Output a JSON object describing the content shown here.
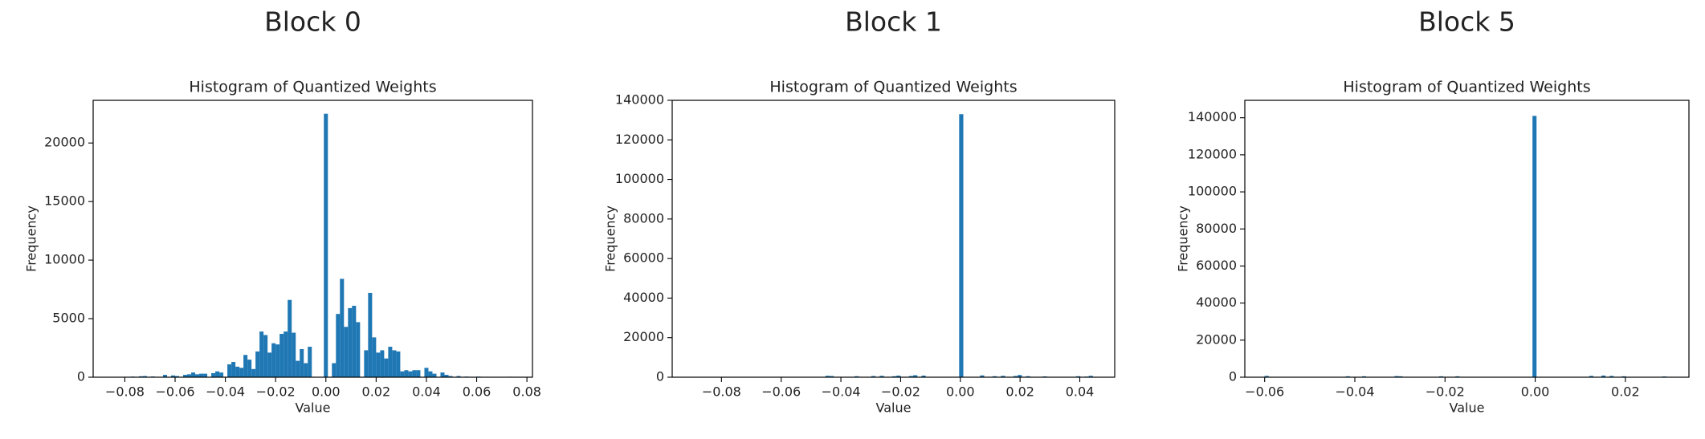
{
  "chart_data": [
    {
      "type": "histogram",
      "title": "Block 0",
      "subtitle": "Histogram of Quantized Weights",
      "xlabel": "Value",
      "ylabel": "Frequency",
      "color": "#1f77b4",
      "bins": [
        -0.0856,
        -0.084,
        -0.0824,
        -0.0808,
        -0.0792,
        -0.0776,
        -0.076,
        -0.0744,
        -0.0728,
        -0.0712,
        -0.0696,
        -0.068,
        -0.0664,
        -0.0648,
        -0.0632,
        -0.0616,
        -0.06,
        -0.0584,
        -0.0568,
        -0.0552,
        -0.0536,
        -0.052,
        -0.0504,
        -0.0488,
        -0.0472,
        -0.0456,
        -0.044,
        -0.0424,
        -0.0408,
        -0.0392,
        -0.0376,
        -0.036,
        -0.0344,
        -0.0328,
        -0.0312,
        -0.0296,
        -0.028,
        -0.0264,
        -0.0248,
        -0.0232,
        -0.0216,
        -0.02,
        -0.0184,
        -0.0168,
        -0.0152,
        -0.0136,
        -0.012,
        -0.0104,
        -0.0088,
        -0.0072,
        -0.0056,
        -0.004,
        -0.0024,
        -0.0008,
        0.0008,
        0.0024,
        0.004,
        0.0056,
        0.0072,
        0.0088,
        0.0104,
        0.012,
        0.0136,
        0.0152,
        0.0168,
        0.0184,
        0.02,
        0.0216,
        0.0232,
        0.0248,
        0.0264,
        0.028,
        0.0296,
        0.0312,
        0.0328,
        0.0344,
        0.036,
        0.0376,
        0.0392,
        0.0408,
        0.0424,
        0.044,
        0.0456,
        0.0472,
        0.0488,
        0.0504,
        0.052,
        0.0536,
        0.0552,
        0.0568,
        0.0584,
        0.06,
        0.0616,
        0.0632,
        0.0648,
        0.0664,
        0.068,
        0.0696,
        0.0712,
        0.0728,
        0.0744
      ],
      "values": [
        0,
        0,
        0,
        0,
        0,
        50,
        0,
        80,
        100,
        0,
        60,
        0,
        0,
        200,
        0,
        150,
        100,
        0,
        200,
        250,
        400,
        250,
        300,
        300,
        0,
        350,
        500,
        400,
        0,
        1100,
        1300,
        900,
        800,
        1900,
        1500,
        700,
        2200,
        3900,
        3600,
        2100,
        2900,
        2800,
        3700,
        3900,
        6600,
        3800,
        1400,
        2400,
        1200,
        2600,
        0,
        0,
        0,
        22500,
        0,
        1200,
        5400,
        8400,
        4300,
        5900,
        6100,
        4700,
        0,
        2300,
        7200,
        3400,
        2100,
        2300,
        1600,
        2600,
        2300,
        2200,
        500,
        600,
        500,
        600,
        600,
        0,
        800,
        500,
        300,
        0,
        400,
        200,
        100,
        0,
        100,
        0,
        50,
        0,
        0,
        50,
        0,
        0,
        0,
        0,
        0,
        0,
        0,
        40
      ],
      "xlim": [
        -0.0926,
        0.0822
      ],
      "ylim": [
        0,
        23645
      ],
      "xticks": [
        {
          "value": -0.08,
          "label": "−0.08"
        },
        {
          "value": -0.06,
          "label": "−0.06"
        },
        {
          "value": -0.04,
          "label": "−0.04"
        },
        {
          "value": -0.02,
          "label": "−0.02"
        },
        {
          "value": 0,
          "label": "0.00"
        },
        {
          "value": 0.02,
          "label": "0.02"
        },
        {
          "value": 0.04,
          "label": "0.04"
        },
        {
          "value": 0.06,
          "label": "0.06"
        },
        {
          "value": 0.08,
          "label": "0.08"
        }
      ],
      "yticks": [
        0,
        5000,
        10000,
        15000,
        20000
      ]
    },
    {
      "type": "histogram",
      "title": "Block 1",
      "subtitle": "Histogram of Quantized Weights",
      "xlabel": "Value",
      "ylabel": "Frequency",
      "color": "#1f77b4",
      "bins": [
        -0.09,
        -0.0886,
        -0.0872,
        -0.0858,
        -0.0844,
        -0.083,
        -0.0816,
        -0.0802,
        -0.0788,
        -0.0774,
        -0.076,
        -0.0746,
        -0.0732,
        -0.0718,
        -0.0704,
        -0.069,
        -0.0676,
        -0.0662,
        -0.0648,
        -0.0634,
        -0.062,
        -0.0606,
        -0.0592,
        -0.0578,
        -0.0564,
        -0.055,
        -0.0536,
        -0.0522,
        -0.0508,
        -0.0494,
        -0.048,
        -0.0466,
        -0.0452,
        -0.0438,
        -0.0424,
        -0.041,
        -0.0396,
        -0.0382,
        -0.0368,
        -0.0354,
        -0.034,
        -0.0326,
        -0.0312,
        -0.0298,
        -0.0284,
        -0.027,
        -0.0256,
        -0.0242,
        -0.0228,
        -0.0214,
        -0.02,
        -0.0186,
        -0.0172,
        -0.0158,
        -0.0144,
        -0.013,
        -0.0116,
        -0.0102,
        -0.0088,
        -0.0074,
        -0.006,
        -0.0046,
        -0.0032,
        -0.0018,
        -0.0004,
        0.001,
        0.0024,
        0.0038,
        0.0052,
        0.0066,
        0.008,
        0.0094,
        0.0108,
        0.0122,
        0.0136,
        0.015,
        0.0164,
        0.0178,
        0.0192,
        0.0206,
        0.022,
        0.0234,
        0.0248,
        0.0262,
        0.0276,
        0.029,
        0.0304,
        0.0318,
        0.0332,
        0.0346,
        0.036,
        0.0374,
        0.0388,
        0.0402,
        0.0416,
        0.043,
        0.0444,
        0.0458,
        0.0472,
        0.0486,
        0.05
      ],
      "values": [
        0,
        0,
        0,
        200,
        0,
        0,
        0,
        0,
        0,
        0,
        0,
        0,
        0,
        0,
        0,
        0,
        0,
        0,
        0,
        0,
        0,
        0,
        0,
        0,
        0,
        0,
        0,
        0,
        0,
        0,
        0,
        0,
        700,
        600,
        0,
        0,
        0,
        0,
        0,
        500,
        0,
        0,
        0,
        600,
        0,
        700,
        0,
        0,
        500,
        800,
        0,
        0,
        600,
        1000,
        0,
        800,
        0,
        0,
        0,
        0,
        0,
        0,
        0,
        0,
        133000,
        0,
        0,
        0,
        0,
        900,
        0,
        0,
        500,
        0,
        700,
        0,
        0,
        600,
        1100,
        0,
        500,
        0,
        0,
        0,
        400,
        0,
        0,
        0,
        0,
        0,
        0,
        0,
        500,
        0,
        300,
        700,
        0,
        0,
        0,
        0
      ],
      "xlim": [
        -0.0965,
        0.0517
      ],
      "ylim": [
        0,
        140000
      ],
      "xticks": [
        {
          "value": -0.08,
          "label": "−0.08"
        },
        {
          "value": -0.06,
          "label": "−0.06"
        },
        {
          "value": -0.04,
          "label": "−0.04"
        },
        {
          "value": -0.02,
          "label": "−0.02"
        },
        {
          "value": 0,
          "label": "0.00"
        },
        {
          "value": 0.02,
          "label": "0.02"
        },
        {
          "value": 0.04,
          "label": "0.04"
        }
      ],
      "yticks": [
        0,
        20000,
        40000,
        60000,
        80000,
        100000,
        120000,
        140000
      ]
    },
    {
      "type": "histogram",
      "title": "Block 5",
      "subtitle": "Histogram of Quantized Weights",
      "xlabel": "Value",
      "ylabel": "Frequency",
      "color": "#1f77b4",
      "bins": [
        -0.06,
        -0.0591,
        -0.0582,
        -0.0573,
        -0.0564,
        -0.0555,
        -0.0546,
        -0.0537,
        -0.0528,
        -0.0519,
        -0.051,
        -0.0501,
        -0.0492,
        -0.0483,
        -0.0474,
        -0.0465,
        -0.0456,
        -0.0447,
        -0.0438,
        -0.0429,
        -0.042,
        -0.0411,
        -0.0402,
        -0.0393,
        -0.0384,
        -0.0375,
        -0.0366,
        -0.0357,
        -0.0348,
        -0.0339,
        -0.033,
        -0.0321,
        -0.0312,
        -0.0303,
        -0.0294,
        -0.0285,
        -0.0276,
        -0.0267,
        -0.0258,
        -0.0249,
        -0.024,
        -0.0231,
        -0.0222,
        -0.0213,
        -0.0204,
        -0.0195,
        -0.0186,
        -0.0177,
        -0.0168,
        -0.0159,
        -0.015,
        -0.0141,
        -0.0132,
        -0.0123,
        -0.0114,
        -0.0105,
        -0.0096,
        -0.0087,
        -0.0078,
        -0.0069,
        -0.006,
        -0.0051,
        -0.0042,
        -0.0033,
        -0.0024,
        -0.0015,
        -0.0006,
        0.0003,
        0.0012,
        0.0021,
        0.003,
        0.0039,
        0.0048,
        0.0057,
        0.0066,
        0.0075,
        0.0084,
        0.0093,
        0.0102,
        0.0111,
        0.012,
        0.0129,
        0.0138,
        0.0147,
        0.0156,
        0.0165,
        0.0174,
        0.0183,
        0.0192,
        0.0201,
        0.021,
        0.0219,
        0.0228,
        0.0237,
        0.0246,
        0.0255,
        0.0264,
        0.0273,
        0.0282,
        0.0291,
        0.03
      ],
      "values": [
        700,
        0,
        0,
        0,
        0,
        0,
        0,
        0,
        0,
        0,
        0,
        0,
        0,
        0,
        0,
        0,
        0,
        0,
        0,
        0,
        500,
        0,
        0,
        0,
        500,
        0,
        0,
        0,
        0,
        0,
        0,
        0,
        600,
        500,
        0,
        0,
        0,
        0,
        0,
        0,
        0,
        0,
        0,
        500,
        0,
        0,
        0,
        500,
        0,
        0,
        0,
        0,
        0,
        0,
        0,
        0,
        0,
        0,
        0,
        0,
        0,
        0,
        0,
        0,
        0,
        0,
        141000,
        0,
        0,
        0,
        0,
        0,
        0,
        0,
        0,
        0,
        0,
        0,
        0,
        0,
        700,
        0,
        0,
        900,
        0,
        700,
        0,
        0,
        500,
        0,
        0,
        0,
        0,
        0,
        0,
        0,
        0,
        0,
        400,
        0
      ],
      "xlim": [
        -0.0644,
        0.0341
      ],
      "ylim": [
        0,
        149400
      ],
      "xticks": [
        {
          "value": -0.06,
          "label": "−0.06"
        },
        {
          "value": -0.04,
          "label": "−0.04"
        },
        {
          "value": -0.02,
          "label": "−0.02"
        },
        {
          "value": 0,
          "label": "0.00"
        },
        {
          "value": 0.02,
          "label": "0.02"
        }
      ],
      "yticks": [
        0,
        20000,
        40000,
        60000,
        80000,
        100000,
        120000,
        140000
      ]
    }
  ]
}
